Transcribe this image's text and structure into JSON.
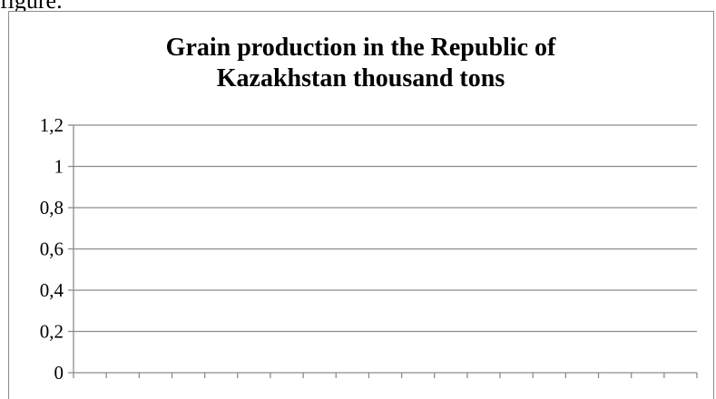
{
  "page": {
    "lead_text": "figure."
  },
  "chart_data": {
    "type": "line",
    "title": "Grain production in the Republic of Kazakhstan thousand tons",
    "title_lines": [
      "Grain production in the Republic of",
      "Kazakhstan thousand tons"
    ],
    "xlabel": "",
    "ylabel": "",
    "ylim": [
      0,
      1.2
    ],
    "yticks": [
      0,
      0.2,
      0.4,
      0.6,
      0.8,
      1,
      1.2
    ],
    "ytick_labels": [
      "0",
      "0,2",
      "0,4",
      "0,6",
      "0,8",
      "1",
      "1,2"
    ],
    "x_category_count": 19,
    "categories": [],
    "series": [],
    "grid": true,
    "legend": "none",
    "colors": {
      "gridline": "#8c8c8c",
      "axis": "#8c8c8c",
      "frame": "#8c8c8c"
    }
  }
}
